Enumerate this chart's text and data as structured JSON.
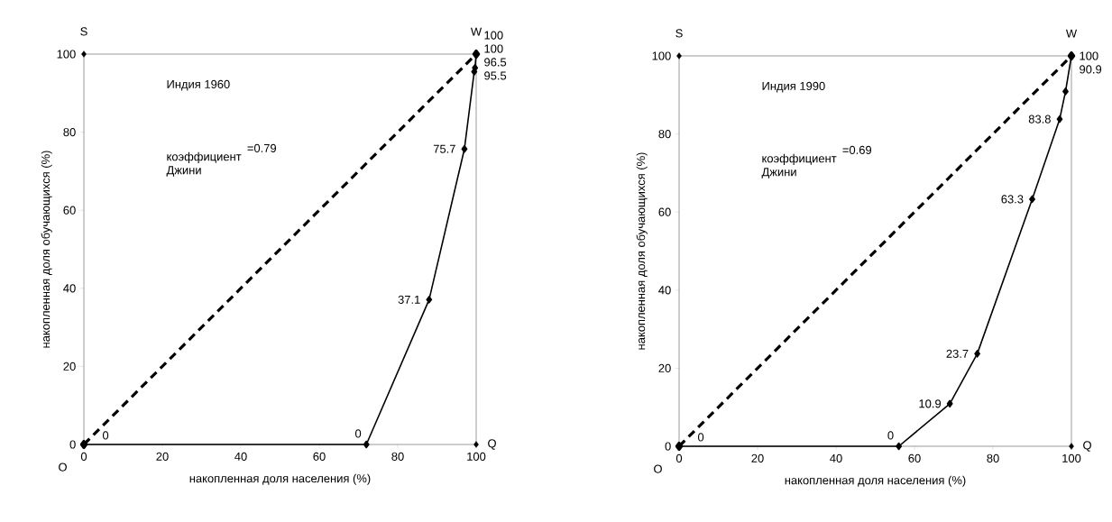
{
  "chart_data": [
    {
      "type": "line",
      "title": "Индия 1960",
      "xlabel": "накопленная доля населения (%)",
      "ylabel": "накопленная доля обучающихся (%)",
      "xlim": [
        0,
        100
      ],
      "ylim": [
        0,
        100
      ],
      "xticks": [
        0,
        20,
        40,
        60,
        80,
        100
      ],
      "yticks": [
        0,
        20,
        40,
        60,
        80,
        100
      ],
      "grid": false,
      "series": [
        {
          "type": "line",
          "x": [
            0,
            100
          ],
          "values": [
            0,
            100
          ],
          "color": "#000000",
          "line_style": "dashed",
          "marker": "diamond",
          "value_labels": [
            null,
            "100"
          ]
        },
        {
          "type": "line",
          "x": [
            0,
            72,
            88,
            97,
            99.5,
            99.7,
            100
          ],
          "values": [
            0,
            0,
            37.1,
            75.7,
            95.5,
            96.5,
            100
          ],
          "color": "#000000",
          "line_style": "solid",
          "marker": "diamond",
          "value_labels": [
            "0",
            "0",
            "37.1",
            "75.7",
            "95.5",
            "96.5",
            "100"
          ]
        },
        {
          "type": "scatter",
          "x": [
            0,
            100,
            100
          ],
          "values": [
            100,
            100,
            0
          ],
          "color": "#000000",
          "marker": "diamond"
        }
      ],
      "annotations": [
        "S",
        "W",
        "Q",
        "O",
        "коэффициент Джини",
        "=0.79"
      ]
    },
    {
      "type": "line",
      "title": "Индия 1990",
      "xlabel": "накопленная доля населения (%)",
      "ylabel": "накопленная доля обучающихся (%)",
      "xlim": [
        0,
        100
      ],
      "ylim": [
        0,
        100
      ],
      "xticks": [
        0,
        20,
        40,
        60,
        80,
        100
      ],
      "yticks": [
        0,
        20,
        40,
        60,
        80,
        100
      ],
      "grid": false,
      "series": [
        {
          "type": "line",
          "x": [
            0,
            100
          ],
          "values": [
            0,
            100
          ],
          "color": "#000000",
          "line_style": "dashed",
          "marker": "diamond"
        },
        {
          "type": "line",
          "x": [
            0,
            56,
            69,
            76,
            90,
            97,
            98.5,
            100
          ],
          "values": [
            0,
            0,
            10.9,
            23.7,
            63.3,
            83.8,
            90.9,
            100
          ],
          "color": "#000000",
          "line_style": "solid",
          "marker": "diamond",
          "value_labels": [
            "0",
            "0",
            "10.9",
            "23.7",
            "63.3",
            "83.8",
            "90.9",
            "100"
          ]
        },
        {
          "type": "scatter",
          "x": [
            0,
            100,
            100
          ],
          "values": [
            100,
            100,
            0
          ],
          "color": "#000000",
          "marker": "diamond"
        }
      ],
      "annotations": [
        "S",
        "W",
        "Q",
        "O",
        "коэффициент Джини",
        "=0.69"
      ]
    }
  ]
}
